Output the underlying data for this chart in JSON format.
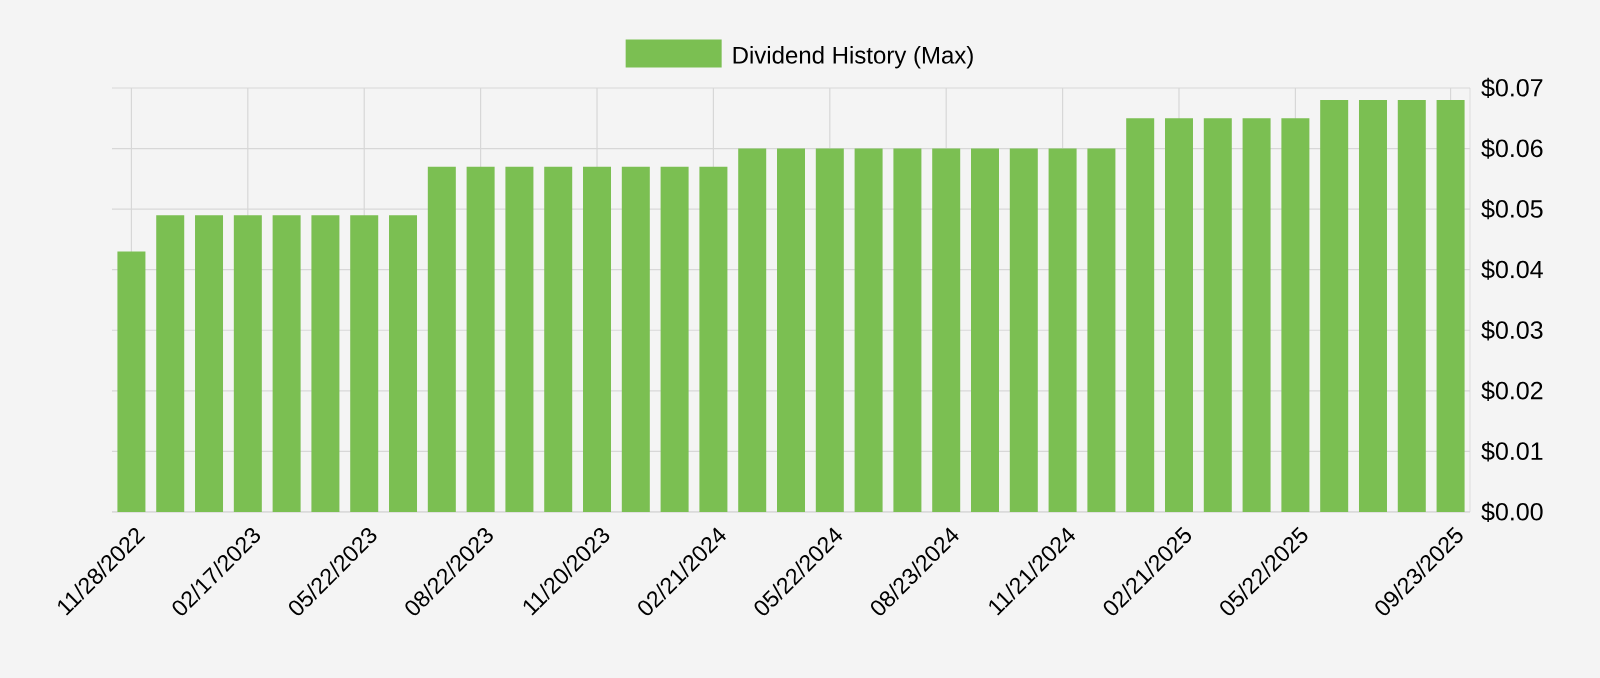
{
  "chart_data": {
    "type": "bar",
    "categories": [
      "11/28/2022",
      null,
      null,
      "02/17/2023",
      null,
      null,
      "05/22/2023",
      null,
      null,
      "08/22/2023",
      null,
      null,
      "11/20/2023",
      null,
      null,
      "02/21/2024",
      null,
      null,
      "05/22/2024",
      null,
      null,
      "08/23/2024",
      null,
      null,
      "11/21/2024",
      null,
      null,
      "02/21/2025",
      null,
      null,
      "05/22/2025",
      null,
      null,
      null,
      "09/23/2025"
    ],
    "series": [
      {
        "name": "Dividend History (Max)",
        "color": "#7bbf52",
        "values": [
          0.043,
          0.049,
          0.049,
          0.049,
          0.049,
          0.049,
          0.049,
          0.049,
          0.057,
          0.057,
          0.057,
          0.057,
          0.057,
          0.057,
          0.057,
          0.057,
          0.06,
          0.06,
          0.06,
          0.06,
          0.06,
          0.06,
          0.06,
          0.06,
          0.06,
          0.06,
          0.065,
          0.065,
          0.065,
          0.065,
          0.065,
          0.068,
          0.068,
          0.068,
          0.068
        ]
      }
    ],
    "ylim": [
      0,
      0.07
    ],
    "yticks": [
      {
        "value": 0,
        "label": "$0.00"
      },
      {
        "value": 0.01,
        "label": "$0.01"
      },
      {
        "value": 0.02,
        "label": "$0.02"
      },
      {
        "value": 0.03,
        "label": "$0.03"
      },
      {
        "value": 0.04,
        "label": "$0.04"
      },
      {
        "value": 0.05,
        "label": "$0.05"
      },
      {
        "value": 0.06,
        "label": "$0.06"
      },
      {
        "value": 0.07,
        "label": "$0.07"
      }
    ],
    "grid": true,
    "legend": "top"
  }
}
